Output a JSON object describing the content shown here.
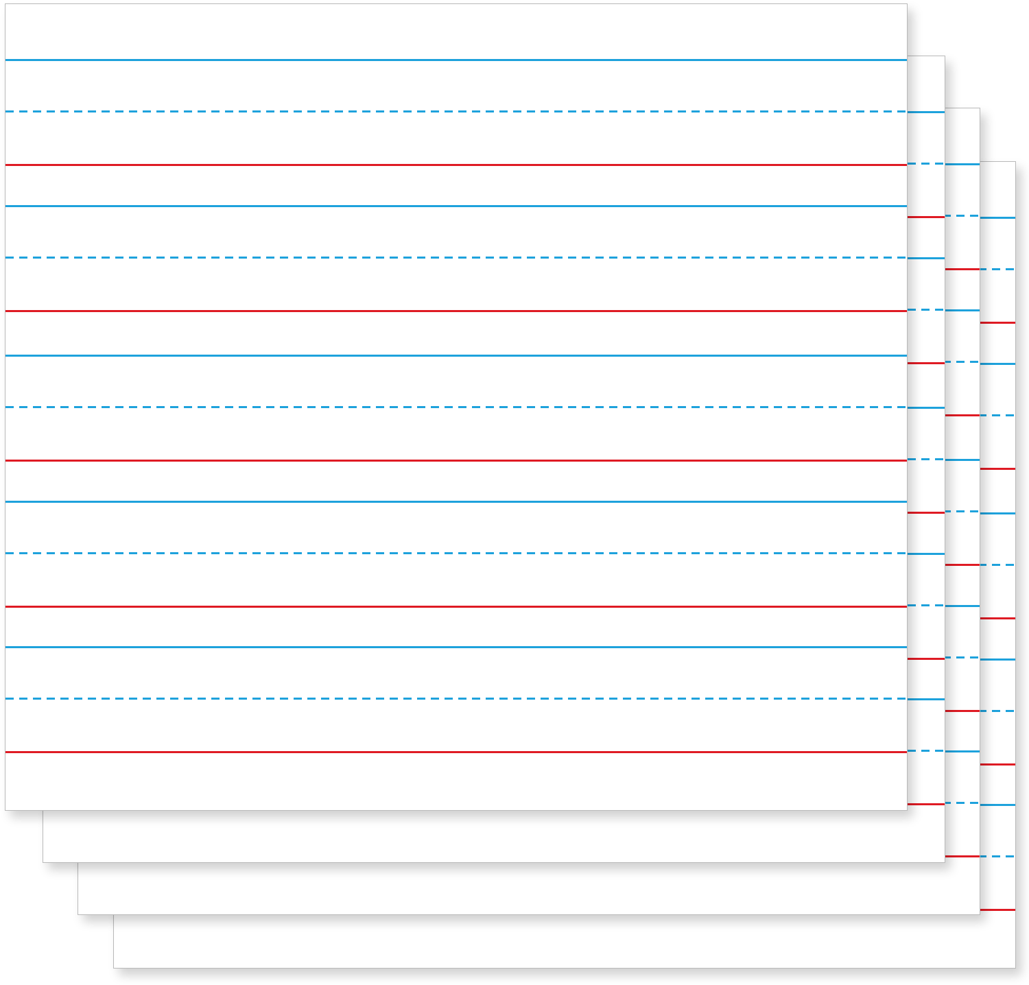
{
  "colors": {
    "blue": "#1ea2dc",
    "red": "#df1b24",
    "paper": "#ffffff",
    "border": "#b9b9b9"
  },
  "sheets": {
    "count": 4,
    "rule_groups_per_sheet": 5,
    "rule_pattern": [
      "blue-solid-top-line",
      "blue-dashed-midline",
      "red-solid-baseline"
    ]
  }
}
